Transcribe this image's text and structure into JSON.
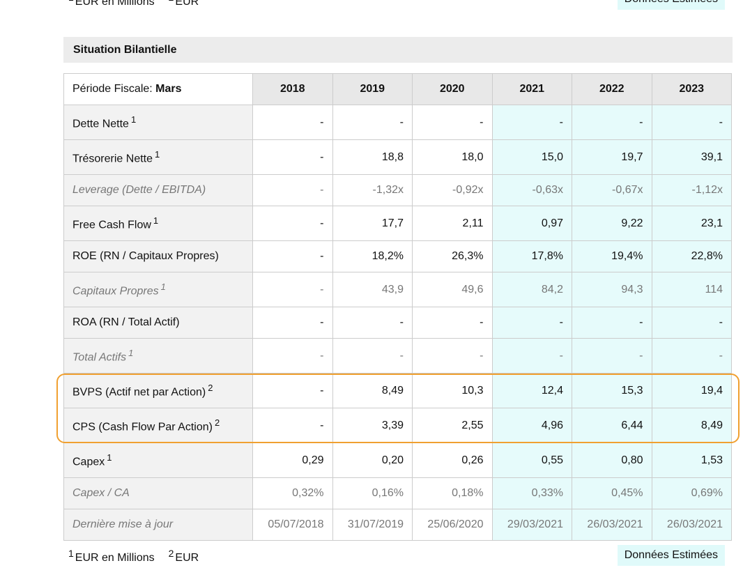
{
  "header": {
    "title": "Situation Bilantielle"
  },
  "notes": [
    {
      "mark": "1",
      "text": "EUR en Millions"
    },
    {
      "mark": "2",
      "text": "EUR"
    }
  ],
  "badge": "Données Estimées",
  "table": {
    "period_label": "Période Fiscale:",
    "period_value": "Mars",
    "years": [
      "2018",
      "2019",
      "2020",
      "2021",
      "2022",
      "2023"
    ],
    "estimated": [
      false,
      false,
      false,
      true,
      true,
      true
    ],
    "rows": [
      {
        "label": "Dette Nette",
        "sup": "1",
        "secondary": false,
        "highlighted": false,
        "values": [
          "-",
          "-",
          "-",
          "-",
          "-",
          "-"
        ]
      },
      {
        "label": "Trésorerie Nette",
        "sup": "1",
        "secondary": false,
        "highlighted": false,
        "values": [
          "-",
          "18,8",
          "18,0",
          "15,0",
          "19,7",
          "39,1"
        ]
      },
      {
        "label": "Leverage (Dette / EBITDA)",
        "secondary": true,
        "highlighted": false,
        "values": [
          "-",
          "-1,32x",
          "-0,92x",
          "-0,63x",
          "-0,67x",
          "-1,12x"
        ]
      },
      {
        "label": "Free Cash Flow",
        "sup": "1",
        "secondary": false,
        "highlighted": false,
        "values": [
          "-",
          "17,7",
          "2,11",
          "0,97",
          "9,22",
          "23,1"
        ]
      },
      {
        "label": "ROE (RN / Capitaux Propres)",
        "secondary": false,
        "highlighted": false,
        "values": [
          "-",
          "18,2%",
          "26,3%",
          "17,8%",
          "19,4%",
          "22,8%"
        ]
      },
      {
        "label": "Capitaux Propres",
        "sup": "1",
        "secondary": true,
        "highlighted": false,
        "values": [
          "-",
          "43,9",
          "49,6",
          "84,2",
          "94,3",
          "114"
        ]
      },
      {
        "label": "ROA (RN / Total Actif)",
        "secondary": false,
        "highlighted": false,
        "values": [
          "-",
          "-",
          "-",
          "-",
          "-",
          "-"
        ]
      },
      {
        "label": "Total Actifs",
        "sup": "1",
        "secondary": true,
        "highlighted": false,
        "values": [
          "-",
          "-",
          "-",
          "-",
          "-",
          "-"
        ]
      },
      {
        "label": "BVPS (Actif net par Action)",
        "sup": "2",
        "secondary": false,
        "highlighted": true,
        "values": [
          "-",
          "8,49",
          "10,3",
          "12,4",
          "15,3",
          "19,4"
        ]
      },
      {
        "label": "CPS (Cash Flow Par Action)",
        "sup": "2",
        "secondary": false,
        "highlighted": true,
        "values": [
          "-",
          "3,39",
          "2,55",
          "4,96",
          "6,44",
          "8,49"
        ]
      },
      {
        "label": "Capex",
        "sup": "1",
        "secondary": false,
        "highlighted": false,
        "values": [
          "0,29",
          "0,20",
          "0,26",
          "0,55",
          "0,80",
          "1,53"
        ]
      },
      {
        "label": "Capex / CA",
        "secondary": true,
        "highlighted": false,
        "values": [
          "0,32%",
          "0,16%",
          "0,18%",
          "0,33%",
          "0,45%",
          "0,69%"
        ]
      },
      {
        "label": "Dernière mise à jour",
        "secondary": true,
        "highlighted": false,
        "values": [
          "05/07/2018",
          "31/07/2019",
          "25/06/2020",
          "29/03/2021",
          "26/03/2021",
          "26/03/2021"
        ]
      }
    ]
  }
}
